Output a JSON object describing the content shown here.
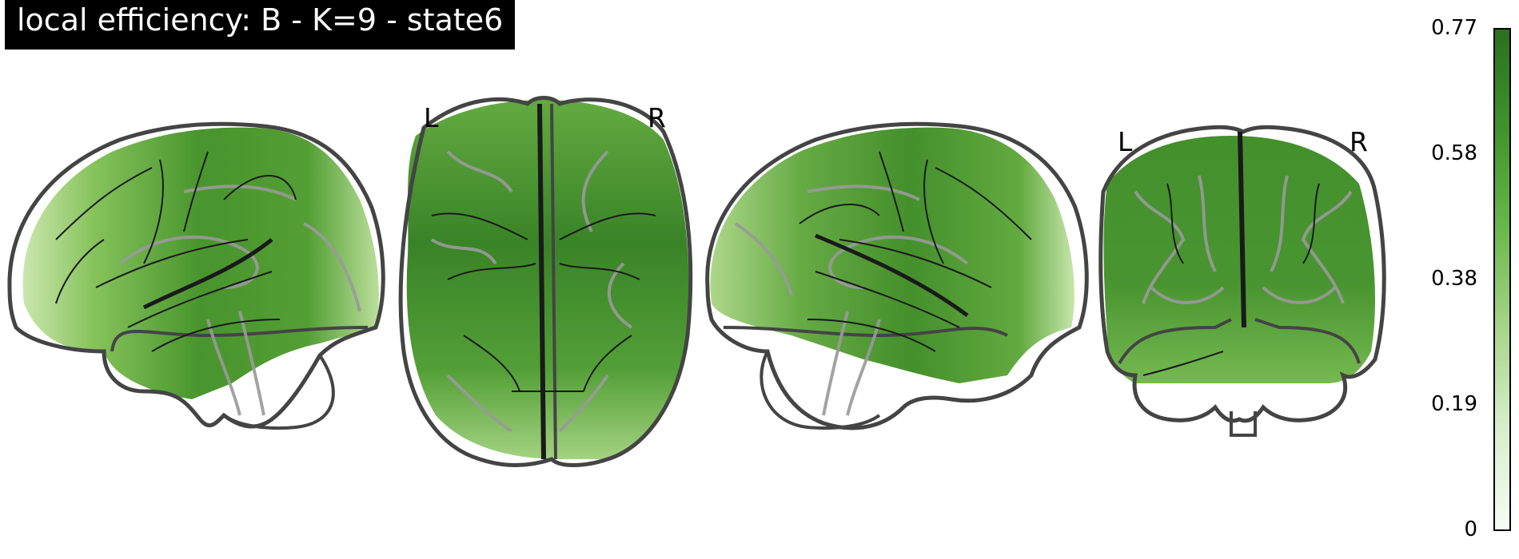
{
  "title": "local efficiency: B - K=9 - state6",
  "views": {
    "axial": {
      "left_label": "L",
      "right_label": "R"
    },
    "coronal": {
      "left_label": "L",
      "right_label": "R"
    }
  },
  "colorbar": {
    "min": 0,
    "max": 0.77,
    "ticks": [
      "0.77",
      "0.58",
      "0.38",
      "0.19",
      "0"
    ],
    "colors": [
      "#f7fcf5",
      "#c7e9c0",
      "#74c476",
      "#41ab5d",
      "#238b45",
      "#006d2c"
    ]
  },
  "colors": {
    "outline": "#444444",
    "sulci": "#1a1a1a",
    "contours": "#9a9a9a",
    "fill_dark": "#2e7d1e",
    "fill_mid": "#4f9a2e",
    "fill_light": "#a5d27f"
  }
}
